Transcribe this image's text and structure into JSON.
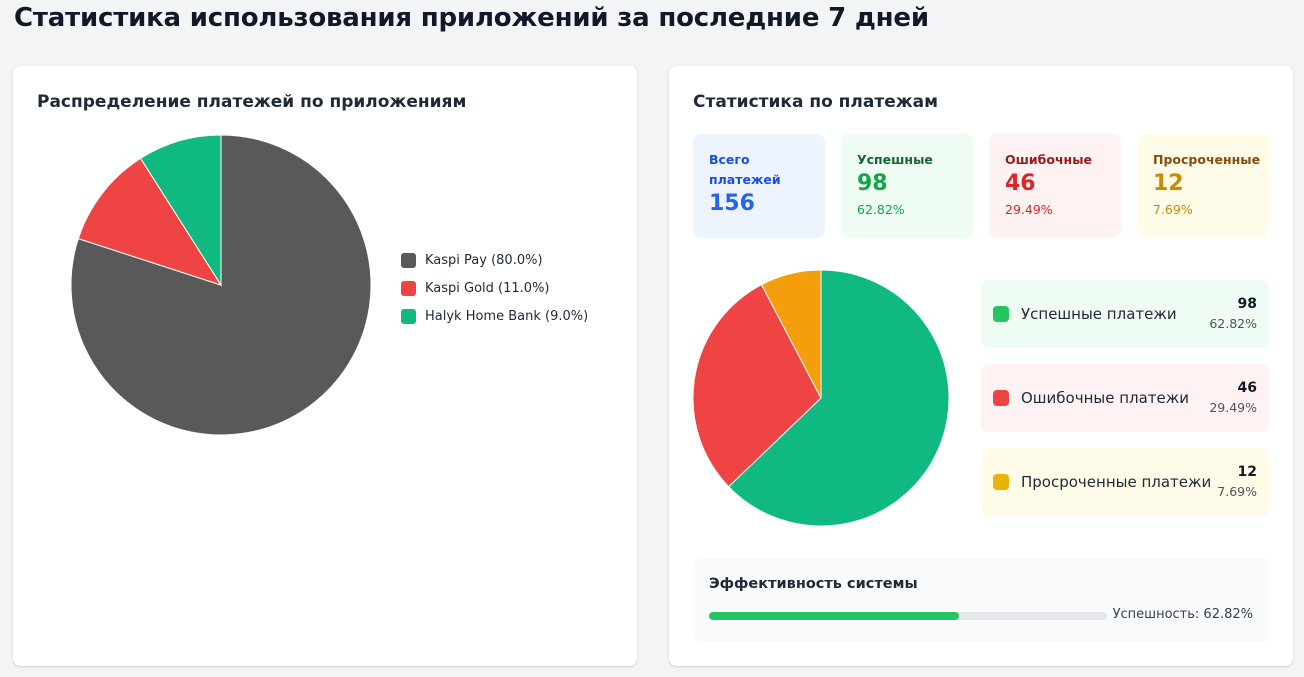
{
  "page": {
    "title": "Статистика использования приложений за последние 7 дней"
  },
  "apps_card": {
    "title": "Распределение платежей по приложениям",
    "legend": [
      {
        "label": "Kaspi Pay (80.0%)",
        "color": "#595959"
      },
      {
        "label": "Kaspi Gold (11.0%)",
        "color": "#ef4444"
      },
      {
        "label": "Halyk Home Bank (9.0%)",
        "color": "#10b981"
      }
    ]
  },
  "payments_card": {
    "title": "Статистика по платежам",
    "stats": {
      "total": {
        "label": "Всего платежей",
        "value": "156"
      },
      "success": {
        "label": "Успешные",
        "value": "98",
        "pct": "62.82%"
      },
      "error": {
        "label": "Ошибочные",
        "value": "46",
        "pct": "29.49%"
      },
      "overdue": {
        "label": "Просроченные",
        "value": "12",
        "pct": "7.69%"
      }
    },
    "rows": {
      "success": {
        "label": "Успешные платежи",
        "count": "98",
        "pct": "62.82%",
        "color": "#22c55e"
      },
      "error": {
        "label": "Ошибочные платежи",
        "count": "46",
        "pct": "29.49%",
        "color": "#ef4444"
      },
      "overdue": {
        "label": "Просроченные платежи",
        "count": "12",
        "pct": "7.69%",
        "color": "#eab308"
      }
    },
    "efficiency": {
      "title": "Эффективность системы",
      "text": "Успешность: 62.82%",
      "value_pct": 62.82,
      "bar_color": "#22c55e"
    }
  },
  "chart_data": [
    {
      "type": "pie",
      "categories": [
        "Kaspi Pay",
        "Kaspi Gold",
        "Halyk Home Bank"
      ],
      "values": [
        80.0,
        11.0,
        9.0
      ],
      "colors": [
        "#595959",
        "#ef4444",
        "#10b981"
      ],
      "legend_position": "right"
    },
    {
      "type": "pie",
      "categories": [
        "Успешные платежи",
        "Ошибочные платежи",
        "Просроченные платежи"
      ],
      "values": [
        98,
        46,
        12
      ],
      "colors": [
        "#10b981",
        "#ef4444",
        "#f59e0b"
      ]
    }
  ]
}
